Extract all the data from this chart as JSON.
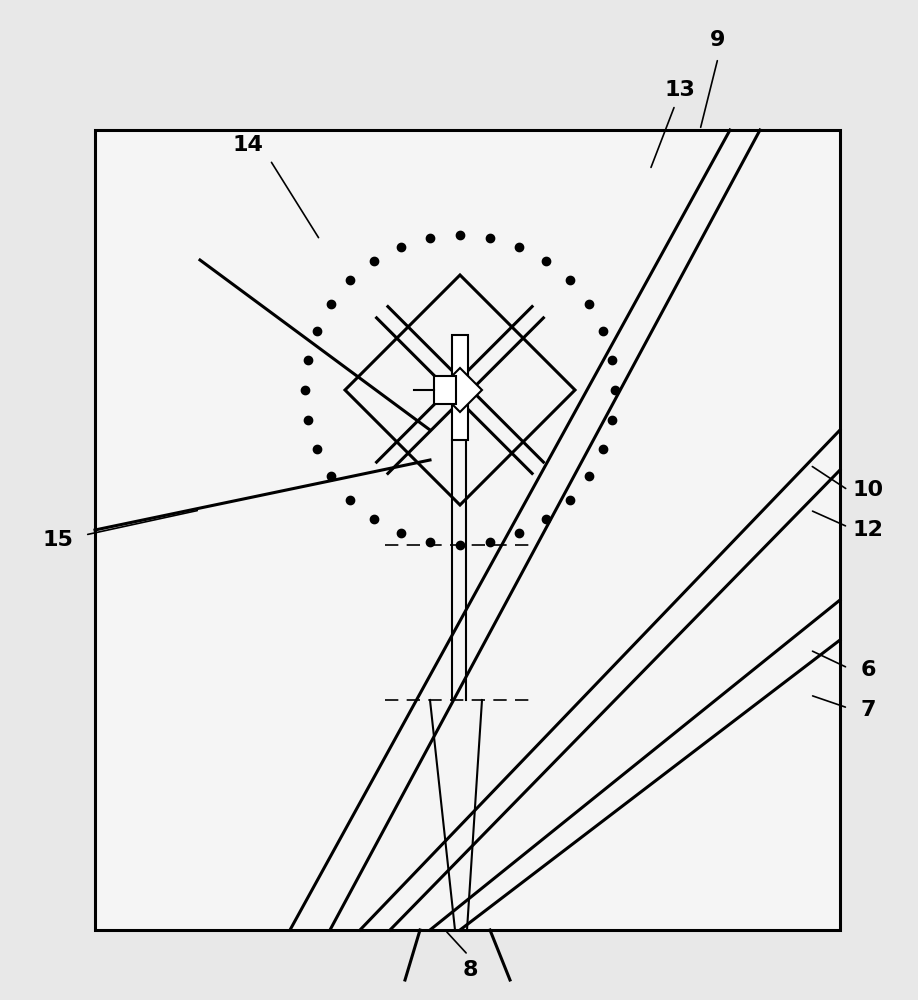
{
  "bg_color": "#e8e8e8",
  "box_color": "#f5f5f5",
  "line_color": "#000000",
  "fig_width": 9.18,
  "fig_height": 10.0,
  "dpi": 100
}
